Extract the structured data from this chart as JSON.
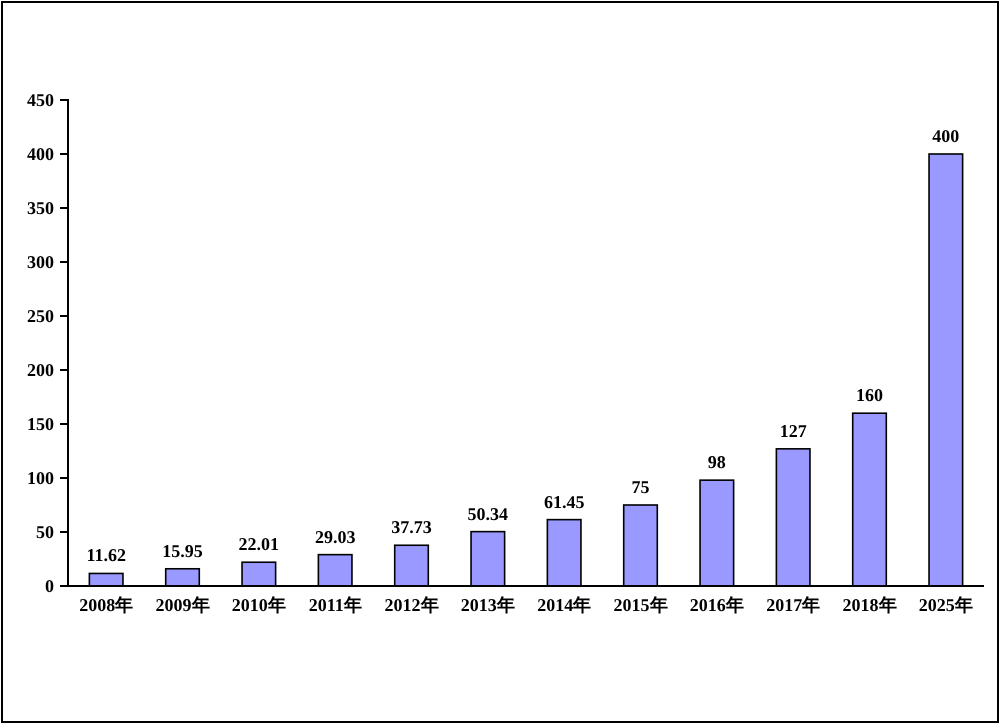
{
  "chart_data": {
    "type": "bar",
    "categories": [
      "2008年",
      "2009年",
      "2010年",
      "2011年",
      "2012年",
      "2013年",
      "2014年",
      "2015年",
      "2016年",
      "2017年",
      "2018年",
      "2025年"
    ],
    "values": [
      11.62,
      15.95,
      22.01,
      29.03,
      37.73,
      50.34,
      61.45,
      75,
      98,
      127,
      160,
      400
    ],
    "color": "#9999ff",
    "ylim": [
      0,
      450
    ],
    "yticks": [
      0,
      50,
      100,
      150,
      200,
      250,
      300,
      350,
      400,
      450
    ],
    "data_labels": true
  }
}
